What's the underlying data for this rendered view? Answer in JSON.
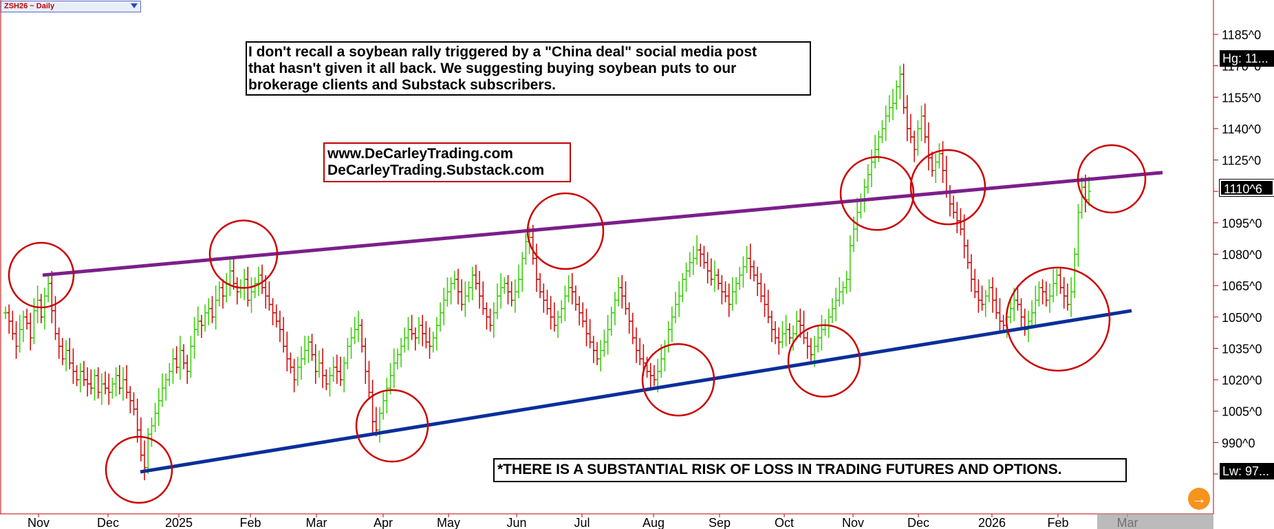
{
  "symbol_label": "ZSH26 ~ Daily",
  "annotations": {
    "note_lines": [
      "I don't recall a soybean rally triggered by a \"China deal\" social media post",
      " that hasn't given it all back. We suggesting buying soybean puts to our",
      " brokerage clients and Substack subscribers."
    ],
    "url_lines": [
      "www.DeCarleyTrading.com",
      "DeCarleyTrading.Substack.com"
    ],
    "risk": "*THERE IS A SUBSTANTIAL RISK OF LOSS IN TRADING FUTURES AND OPTIONS."
  },
  "price_tags": {
    "high": "Hg: 11...",
    "last": "1110^6",
    "low": "Lw: 97..."
  },
  "chart_data": {
    "type": "ohlc",
    "instrument": "ZSH26",
    "interval": "Daily",
    "x_tick_labels": [
      "Nov",
      "Dec",
      "2025",
      "Feb",
      "Mar",
      "Apr",
      "May",
      "Jun",
      "Jul",
      "Aug",
      "Sep",
      "Oct",
      "Nov",
      "Dec",
      "2026",
      "Feb",
      "Mar"
    ],
    "y_tick_labels": [
      "1185^0",
      "1170^0",
      "1155^0",
      "1140^0",
      "1125^0",
      "1110^0",
      "1095^0",
      "1080^0",
      "1065^0",
      "1050^0",
      "1035^0",
      "1020^0",
      "1005^0",
      "990^0",
      "975^0"
    ],
    "ylim": [
      970,
      1195
    ],
    "colors": {
      "up": "#33cc00",
      "down": "#cc0000",
      "upper_trendline": "#7b1f8a",
      "lower_trendline": "#0a2f9a",
      "circles": "#cc0000",
      "background": "#ffffff"
    },
    "trendlines": [
      {
        "name": "resistance",
        "color": "#7b1f8a",
        "from": {
          "month": "Nov 2024",
          "price": 1070
        },
        "to": {
          "month": "Feb 2026",
          "price": 1119
        }
      },
      {
        "name": "support",
        "color": "#0a2f9a",
        "from": {
          "month": "Dec 2024",
          "price": 976
        },
        "to": {
          "month": "Feb 2026",
          "price": 1053
        }
      }
    ],
    "circled_touches": [
      {
        "month": "Nov 2024",
        "price": 1070
      },
      {
        "month": "Dec 2024",
        "price": 977
      },
      {
        "month": "Feb 2025",
        "price": 1080
      },
      {
        "month": "Apr 2025",
        "price": 998
      },
      {
        "month": "Jun 2025",
        "price": 1091
      },
      {
        "month": "Aug 2025",
        "price": 1020
      },
      {
        "month": "Oct 2025",
        "price": 1029
      },
      {
        "month": "Nov 2025",
        "price": 1109
      },
      {
        "month": "Dec 2025",
        "price": 1112
      },
      {
        "month": "Jan 2026",
        "price": 1049
      },
      {
        "month": "Feb 2026",
        "price": 1116
      }
    ],
    "series": [
      {
        "name": "ZSH26",
        "close": [
          1052,
          1048,
          1042,
          1036,
          1044,
          1050,
          1047,
          1040,
          1053,
          1058,
          1050,
          1060,
          1066,
          1053,
          1042,
          1036,
          1030,
          1034,
          1028,
          1024,
          1020,
          1024,
          1020,
          1018,
          1016,
          1022,
          1014,
          1018,
          1016,
          1014,
          1018,
          1022,
          1016,
          1020,
          1014,
          1010,
          1006,
          996,
          984,
          978,
          994,
          998,
          1004,
          1010,
          1016,
          1020,
          1024,
          1030,
          1026,
          1034,
          1028,
          1024,
          1036,
          1044,
          1048,
          1046,
          1052,
          1054,
          1050,
          1058,
          1064,
          1060,
          1066,
          1072,
          1066,
          1062,
          1064,
          1068,
          1058,
          1062,
          1066,
          1070,
          1064,
          1060,
          1056,
          1052,
          1048,
          1044,
          1036,
          1030,
          1026,
          1020,
          1026,
          1030,
          1034,
          1038,
          1032,
          1024,
          1028,
          1022,
          1018,
          1022,
          1026,
          1024,
          1020,
          1028,
          1036,
          1040,
          1044,
          1046,
          1036,
          1024,
          1014,
          1000,
          996,
          1004,
          1010,
          1016,
          1022,
          1028,
          1032,
          1036,
          1040,
          1044,
          1042,
          1040,
          1046,
          1042,
          1038,
          1036,
          1040,
          1046,
          1052,
          1058,
          1062,
          1066,
          1068,
          1062,
          1056,
          1060,
          1064,
          1070,
          1066,
          1060,
          1054,
          1050,
          1046,
          1052,
          1060,
          1064,
          1066,
          1062,
          1058,
          1062,
          1068,
          1078,
          1086,
          1088,
          1078,
          1068,
          1062,
          1058,
          1054,
          1050,
          1046,
          1050,
          1054,
          1060,
          1064,
          1062,
          1056,
          1052,
          1048,
          1042,
          1038,
          1034,
          1030,
          1034,
          1038,
          1044,
          1052,
          1058,
          1064,
          1060,
          1054,
          1048,
          1040,
          1034,
          1030,
          1028,
          1024,
          1022,
          1020,
          1024,
          1030,
          1036,
          1044,
          1050,
          1056,
          1060,
          1068,
          1072,
          1076,
          1078,
          1082,
          1080,
          1076,
          1072,
          1068,
          1070,
          1066,
          1062,
          1060,
          1056,
          1062,
          1066,
          1070,
          1074,
          1078,
          1074,
          1070,
          1066,
          1060,
          1056,
          1050,
          1044,
          1040,
          1038,
          1042,
          1044,
          1040,
          1042,
          1048,
          1046,
          1040,
          1036,
          1032,
          1036,
          1040,
          1044,
          1046,
          1050,
          1054,
          1058,
          1062,
          1064,
          1068,
          1084,
          1092,
          1100,
          1106,
          1112,
          1118,
          1124,
          1130,
          1136,
          1140,
          1146,
          1150,
          1152,
          1160,
          1166,
          1150,
          1140,
          1136,
          1130,
          1140,
          1146,
          1136,
          1126,
          1120,
          1124,
          1128,
          1120,
          1110,
          1104,
          1100,
          1096,
          1092,
          1084,
          1076,
          1068,
          1062,
          1058,
          1056,
          1060,
          1064,
          1058,
          1052,
          1048,
          1046,
          1050,
          1054,
          1058,
          1056,
          1050,
          1044,
          1048,
          1052,
          1058,
          1064,
          1062,
          1058,
          1060,
          1066,
          1070,
          1064,
          1060,
          1056,
          1062,
          1080,
          1100,
          1112,
          1106,
          1110
        ]
      }
    ]
  }
}
